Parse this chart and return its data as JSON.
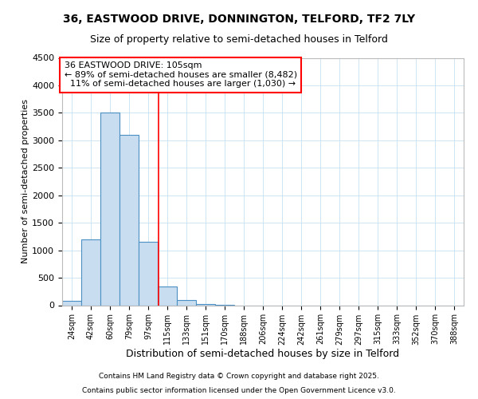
{
  "title": "36, EASTWOOD DRIVE, DONNINGTON, TELFORD, TF2 7LY",
  "subtitle": "Size of property relative to semi-detached houses in Telford",
  "xlabel": "Distribution of semi-detached houses by size in Telford",
  "ylabel": "Number of semi-detached properties",
  "categories": [
    "24sqm",
    "42sqm",
    "60sqm",
    "79sqm",
    "97sqm",
    "115sqm",
    "133sqm",
    "151sqm",
    "170sqm",
    "188sqm",
    "206sqm",
    "224sqm",
    "242sqm",
    "261sqm",
    "279sqm",
    "297sqm",
    "315sqm",
    "333sqm",
    "352sqm",
    "370sqm",
    "388sqm"
  ],
  "values": [
    75,
    1200,
    3500,
    3100,
    1150,
    340,
    100,
    25,
    5,
    0,
    0,
    0,
    0,
    0,
    0,
    0,
    0,
    0,
    0,
    0,
    0
  ],
  "bar_color": "#c8ddf0",
  "bar_edge_color": "#4a90c4",
  "vline_x_index": 4.55,
  "vline_color": "red",
  "annotation_line1": "36 EASTWOOD DRIVE: 105sqm",
  "annotation_line2": "← 89% of semi-detached houses are smaller (8,482)",
  "annotation_line3": "  11% of semi-detached houses are larger (1,030) →",
  "ylim": [
    0,
    4500
  ],
  "yticks": [
    0,
    500,
    1000,
    1500,
    2000,
    2500,
    3000,
    3500,
    4000,
    4500
  ],
  "footer1": "Contains HM Land Registry data © Crown copyright and database right 2025.",
  "footer2": "Contains public sector information licensed under the Open Government Licence v3.0.",
  "title_fontsize": 10,
  "subtitle_fontsize": 9,
  "ylabel_fontsize": 8,
  "xlabel_fontsize": 9,
  "ytick_fontsize": 8,
  "xtick_fontsize": 7,
  "annot_fontsize": 8,
  "footer_fontsize": 6.5,
  "bg_color": "#ffffff",
  "grid_color": "#c8dff0"
}
